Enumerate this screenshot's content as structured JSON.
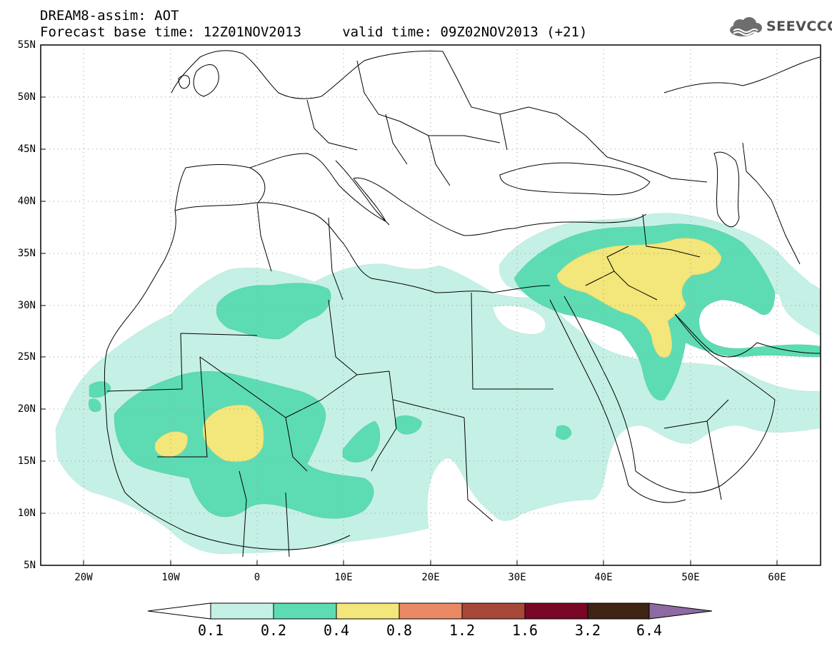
{
  "header": {
    "line1": "DREAM8-assim: AOT",
    "line2": "Forecast base time: 12Z01NOV2013     valid time: 09Z02NOV2013 (+21)"
  },
  "logo": {
    "text": "SEEVCCC",
    "icon": "cloud-icon"
  },
  "map": {
    "field": "AOT",
    "lat_labels": [
      "55N",
      "50N",
      "45N",
      "40N",
      "35N",
      "30N",
      "25N",
      "20N",
      "15N",
      "10N",
      "5N"
    ],
    "lon_labels": [
      "20W",
      "10W",
      "0",
      "10E",
      "20E",
      "30E",
      "40E",
      "50E",
      "60E"
    ],
    "extent": {
      "lon_min": -25,
      "lon_max": 65,
      "lat_min": 5,
      "lat_max": 55
    }
  },
  "colorbar": {
    "labels": [
      "0.1",
      "0.2",
      "0.4",
      "0.8",
      "1.2",
      "1.6",
      "3.2",
      "6.4"
    ],
    "colors": [
      "#ffffff",
      "#c5f0e5",
      "#5ddcb4",
      "#f3e67a",
      "#e98a65",
      "#a84838",
      "#7a0725",
      "#3d2414",
      "#8d6aa1"
    ]
  },
  "colors": {
    "low": "#c5f0e5",
    "medium": "#5ddcb4",
    "high": "#f3e67a"
  }
}
